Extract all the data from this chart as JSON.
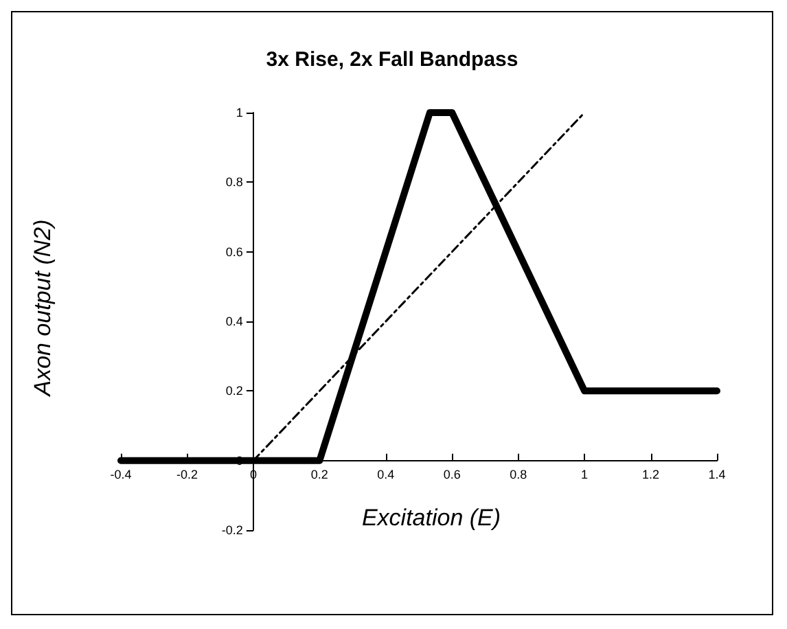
{
  "chart_data": {
    "type": "line",
    "title": "3x Rise, 2x Fall Bandpass",
    "xlabel": "Excitation (E)",
    "ylabel": "Axon output (N2)",
    "xlim": [
      -0.4,
      1.4
    ],
    "xticks": [
      -0.4,
      -0.2,
      0,
      0.2,
      0.4,
      0.6,
      0.8,
      1,
      1.2,
      1.4
    ],
    "ylim": [
      -0.2,
      1
    ],
    "yticks": [
      -0.2,
      0,
      0.2,
      0.4,
      0.6,
      0.8,
      1
    ],
    "marker": "none",
    "series": [
      {
        "color": "#000000",
        "x": [
          -0.4,
          0.2,
          0.533,
          0.6,
          0.8,
          0.9,
          1,
          1.4
        ],
        "values": [
          0,
          0,
          1,
          1,
          0.6,
          0.4,
          0.2,
          0.2
        ],
        "line_style": "solid"
      },
      {
        "color": "#000000",
        "x": [
          0,
          1
        ],
        "values": [
          0,
          1
        ],
        "line_style": "dashed"
      }
    ]
  }
}
